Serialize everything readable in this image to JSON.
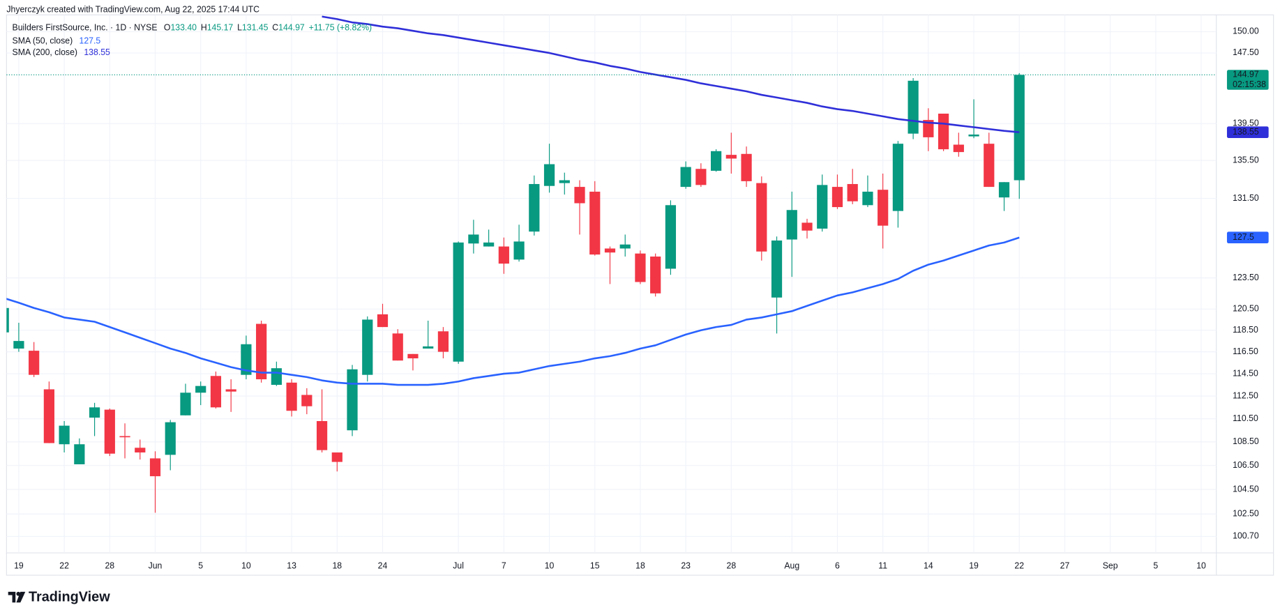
{
  "chart_data": {
    "type": "candlestick",
    "attribution": "Jhyerczyk created with TradingView.com, Aug 22, 2025 17:44 UTC",
    "brand": "TradingView",
    "header": {
      "title": "Builders FirstSource, Inc. · 1D · NYSE",
      "ohlc": [
        {
          "key": "O",
          "value": "133.40"
        },
        {
          "key": "H",
          "value": "145.17"
        },
        {
          "key": "L",
          "value": "131.45"
        },
        {
          "key": "C",
          "value": "144.97"
        }
      ],
      "change": "+11.75 (+8.82%)"
    },
    "countdown": "02:15:38",
    "up_color": "#089981",
    "down_color": "#f23645",
    "log_scale": true,
    "grid": true,
    "ylim": [
      99.4,
      152
    ],
    "yticks": [
      {
        "value": 150,
        "label": "150.00"
      },
      {
        "value": 147.5,
        "label": "147.50"
      },
      {
        "value": 139.5,
        "label": "139.50"
      },
      {
        "value": 135.5,
        "label": "135.50"
      },
      {
        "value": 131.5,
        "label": "131.50"
      },
      {
        "value": 123.5,
        "label": "123.50"
      },
      {
        "value": 120.5,
        "label": "120.50"
      },
      {
        "value": 118.5,
        "label": "118.50"
      },
      {
        "value": 116.5,
        "label": "116.50"
      },
      {
        "value": 114.5,
        "label": "114.50"
      },
      {
        "value": 112.5,
        "label": "112.50"
      },
      {
        "value": 110.5,
        "label": "110.50"
      },
      {
        "value": 108.5,
        "label": "108.50"
      },
      {
        "value": 106.5,
        "label": "106.50"
      },
      {
        "value": 104.5,
        "label": "104.50"
      },
      {
        "value": 102.5,
        "label": "102.50"
      },
      {
        "value": 100.7,
        "label": "100.70"
      }
    ],
    "categories": [
      null,
      "19",
      null,
      null,
      "22",
      null,
      null,
      "28",
      null,
      null,
      "Jun",
      null,
      null,
      "5",
      null,
      null,
      "10",
      null,
      null,
      "13",
      null,
      null,
      "18",
      null,
      null,
      "24",
      null,
      null,
      null,
      null,
      "Jul",
      null,
      null,
      "7",
      null,
      null,
      "10",
      null,
      null,
      "15",
      null,
      null,
      "18",
      null,
      null,
      "23",
      null,
      null,
      "28",
      null,
      null,
      null,
      "Aug",
      null,
      null,
      "6",
      null,
      null,
      "11",
      null,
      null,
      "14",
      null,
      null,
      "19",
      null,
      null,
      "22",
      null,
      null,
      "27",
      null,
      null,
      "Sep",
      null,
      null,
      "5",
      null,
      null,
      "10"
    ],
    "open": [
      118.3,
      116.8,
      116.6,
      113.1,
      108.3,
      106.6,
      110.6,
      111.3,
      109.0,
      108.0,
      107.1,
      107.4,
      110.8,
      112.8,
      114.3,
      113.1,
      114.4,
      119.1,
      113.5,
      113.7,
      112.6,
      110.3,
      107.6,
      109.5,
      114.4,
      120.0,
      118.2,
      116.3,
      116.8,
      118.4,
      115.6,
      126.9,
      126.6,
      126.6,
      125.3,
      128.1,
      132.8,
      133.1,
      132.7,
      132.2,
      126.4,
      126.4,
      125.9,
      125.6,
      124.4,
      132.7,
      134.6,
      134.4,
      136.1,
      136.2,
      133.1,
      121.6,
      127.3,
      129.0,
      128.4,
      132.7,
      133.0,
      130.8,
      132.4,
      130.2,
      138.4,
      139.9,
      140.6,
      137.2,
      138.1,
      137.3,
      131.6,
      133.4,
      null,
      null,
      null,
      null,
      null,
      null,
      null,
      null,
      null,
      null,
      null,
      null
    ],
    "high": [
      120.8,
      119.2,
      117.4,
      113.8,
      110.3,
      108.8,
      111.9,
      111.4,
      110.1,
      108.7,
      107.7,
      110.4,
      113.6,
      113.8,
      114.7,
      114.0,
      118.0,
      119.4,
      115.6,
      114.0,
      113.2,
      113.1,
      107.6,
      115.3,
      119.8,
      121.0,
      118.6,
      116.3,
      119.4,
      118.8,
      127.1,
      129.3,
      128.3,
      127.5,
      128.8,
      133.9,
      137.3,
      134.2,
      133.4,
      133.3,
      126.6,
      127.8,
      126.2,
      125.9,
      131.3,
      135.4,
      135.2,
      136.7,
      138.5,
      137.0,
      133.8,
      127.6,
      132.2,
      129.4,
      134.0,
      134.0,
      134.6,
      133.9,
      134.1,
      137.6,
      144.6,
      141.2,
      140.6,
      138.5,
      142.2,
      138.5,
      133.2,
      145.17,
      null,
      null,
      null,
      null,
      null,
      null,
      null,
      null,
      null,
      null,
      null,
      null
    ],
    "low": [
      118.0,
      116.5,
      114.2,
      108.4,
      107.6,
      106.6,
      109.0,
      107.3,
      107.1,
      107.0,
      102.6,
      106.1,
      110.8,
      111.7,
      111.4,
      111.1,
      114.0,
      113.7,
      113.4,
      110.7,
      110.9,
      107.6,
      106.0,
      109.0,
      113.8,
      118.8,
      115.7,
      114.8,
      116.8,
      115.9,
      115.4,
      125.9,
      126.6,
      123.9,
      125.1,
      127.7,
      132.1,
      131.9,
      127.8,
      125.7,
      122.9,
      125.6,
      122.9,
      121.7,
      123.8,
      132.5,
      132.7,
      134.3,
      134.1,
      132.7,
      125.2,
      118.2,
      123.6,
      127.4,
      128.1,
      130.4,
      130.9,
      130.6,
      126.4,
      128.5,
      137.8,
      136.5,
      136.5,
      135.9,
      137.9,
      132.7,
      130.2,
      131.45,
      null,
      null,
      null,
      null,
      null,
      null,
      null,
      null,
      null,
      null,
      null,
      null
    ],
    "close": [
      120.6,
      117.5,
      114.4,
      108.4,
      109.9,
      108.3,
      111.5,
      107.5,
      108.9,
      107.6,
      105.6,
      110.2,
      112.8,
      113.4,
      111.5,
      112.9,
      117.2,
      114.0,
      115.0,
      111.2,
      111.6,
      107.8,
      106.8,
      114.9,
      119.5,
      118.8,
      115.7,
      115.9,
      117.0,
      116.5,
      127.0,
      127.8,
      127.0,
      124.9,
      127.1,
      133.0,
      135.1,
      133.4,
      131.0,
      125.8,
      126.0,
      126.8,
      123.1,
      122.0,
      130.8,
      134.8,
      132.9,
      136.5,
      135.7,
      133.3,
      126.1,
      127.2,
      130.3,
      128.2,
      132.9,
      130.6,
      131.2,
      132.2,
      128.7,
      137.3,
      144.3,
      138.0,
      136.7,
      136.4,
      138.3,
      132.7,
      133.2,
      144.97,
      null,
      null,
      null,
      null,
      null,
      null,
      null,
      null,
      null,
      null,
      null,
      null
    ],
    "series": [
      {
        "name": "SMA (50, close)",
        "color": "#2962ff",
        "values": [
          121.56,
          121.1,
          120.6,
          120.2,
          119.7,
          119.5,
          119.3,
          118.8,
          118.3,
          117.8,
          117.3,
          116.8,
          116.4,
          115.9,
          115.5,
          115.1,
          114.8,
          114.6,
          114.6,
          114.4,
          114.2,
          113.9,
          113.7,
          113.6,
          113.6,
          113.6,
          113.5,
          113.5,
          113.5,
          113.6,
          113.8,
          114.1,
          114.3,
          114.5,
          114.6,
          114.9,
          115.2,
          115.4,
          115.6,
          115.9,
          116.1,
          116.4,
          116.8,
          117.1,
          117.6,
          118.1,
          118.5,
          118.8,
          119.0,
          119.5,
          119.7,
          120.0,
          120.3,
          120.8,
          121.3,
          121.8,
          122.1,
          122.5,
          122.9,
          123.4,
          124.2,
          124.8,
          125.2,
          125.7,
          126.2,
          126.7,
          127.0,
          127.5,
          null,
          null,
          null,
          null,
          null,
          null,
          null,
          null,
          null,
          null,
          null,
          null
        ]
      },
      {
        "name": "SMA (200, close)",
        "color": "#2f2fd9",
        "values": [
          null,
          null,
          null,
          null,
          null,
          null,
          null,
          null,
          null,
          null,
          null,
          null,
          null,
          null,
          null,
          null,
          null,
          null,
          null,
          null,
          null,
          151.8,
          151.5,
          151.1,
          150.9,
          150.6,
          150.4,
          150.1,
          149.8,
          149.6,
          149.3,
          149.0,
          148.7,
          148.4,
          148.1,
          147.8,
          147.5,
          147.1,
          146.7,
          146.4,
          146.0,
          145.7,
          145.3,
          145.0,
          144.7,
          144.4,
          144.0,
          143.7,
          143.4,
          143.1,
          142.7,
          142.4,
          142.1,
          141.8,
          141.4,
          141.1,
          140.9,
          140.6,
          140.3,
          140.0,
          139.8,
          139.6,
          139.5,
          139.3,
          139.1,
          138.9,
          138.7,
          138.55,
          null,
          null,
          null,
          null,
          null,
          null,
          null,
          null,
          null,
          null,
          null,
          null
        ]
      }
    ]
  }
}
